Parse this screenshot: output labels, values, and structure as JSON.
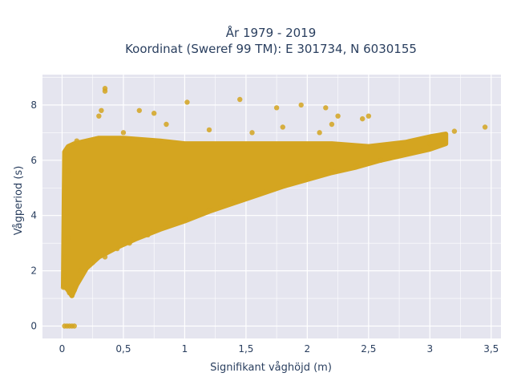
{
  "chart_data": {
    "type": "scatter",
    "title_line1": "År 1979 - 2019",
    "title_line2": "Koordinat (Sweref 99 TM): E 301734, N 6030155",
    "xlabel": "Signifikant våghöjd (m)",
    "ylabel": "Vågperiod (s)",
    "xlim": [
      -0.16,
      3.58
    ],
    "ylim": [
      -0.45,
      9.1
    ],
    "x_ticks": [
      0,
      0.5,
      1,
      1.5,
      2,
      2.5,
      3,
      3.5
    ],
    "x_tick_labels": [
      "0",
      "0,5",
      "1",
      "1,5",
      "2",
      "2,5",
      "3",
      "3,5"
    ],
    "y_ticks": [
      0,
      2,
      4,
      6,
      8
    ],
    "y_tick_labels": [
      "0",
      "2",
      "4",
      "6",
      "8"
    ],
    "grid": true,
    "marker_color": "#D4A520",
    "plot_background": "#E5E5EF",
    "points": [
      [
        0.02,
        0.0
      ],
      [
        0.04,
        0.0
      ],
      [
        0.06,
        0.0
      ],
      [
        0.08,
        0.0
      ],
      [
        0.1,
        0.0
      ],
      [
        0.01,
        1.4
      ],
      [
        0.02,
        1.8
      ],
      [
        0.03,
        2.5
      ],
      [
        0.05,
        3.2
      ],
      [
        0.04,
        4.1
      ],
      [
        0.03,
        5.0
      ],
      [
        0.05,
        5.6
      ],
      [
        0.04,
        6.2
      ],
      [
        0.06,
        1.2
      ],
      [
        0.08,
        1.1
      ],
      [
        0.1,
        1.3
      ],
      [
        0.09,
        6.5
      ],
      [
        0.12,
        6.7
      ],
      [
        0.35,
        8.6
      ],
      [
        0.35,
        8.5
      ],
      [
        0.32,
        7.8
      ],
      [
        0.3,
        7.6
      ],
      [
        0.63,
        7.8
      ],
      [
        0.75,
        7.7
      ],
      [
        1.02,
        8.1
      ],
      [
        1.45,
        8.2
      ],
      [
        1.75,
        7.9
      ],
      [
        1.95,
        8.0
      ],
      [
        2.15,
        7.9
      ],
      [
        2.25,
        7.6
      ],
      [
        2.5,
        7.6
      ],
      [
        2.45,
        7.5
      ],
      [
        0.5,
        7.0
      ],
      [
        0.85,
        7.3
      ],
      [
        1.2,
        7.1
      ],
      [
        1.55,
        7.0
      ],
      [
        1.8,
        7.2
      ],
      [
        2.1,
        7.0
      ],
      [
        2.2,
        7.3
      ],
      [
        0.15,
        2.0
      ],
      [
        0.25,
        2.3
      ],
      [
        0.35,
        2.5
      ],
      [
        0.45,
        2.8
      ],
      [
        0.55,
        3.0
      ],
      [
        0.7,
        3.3
      ],
      [
        0.85,
        3.6
      ],
      [
        1.0,
        3.9
      ],
      [
        1.2,
        4.2
      ],
      [
        1.4,
        4.5
      ],
      [
        1.6,
        4.8
      ],
      [
        1.8,
        5.1
      ],
      [
        2.0,
        5.4
      ],
      [
        2.2,
        5.6
      ],
      [
        2.4,
        5.8
      ],
      [
        2.6,
        6.0
      ],
      [
        2.8,
        6.3
      ],
      [
        3.0,
        6.6
      ],
      [
        3.1,
        6.7
      ],
      [
        3.2,
        7.05
      ],
      [
        3.45,
        7.2
      ]
    ]
  }
}
